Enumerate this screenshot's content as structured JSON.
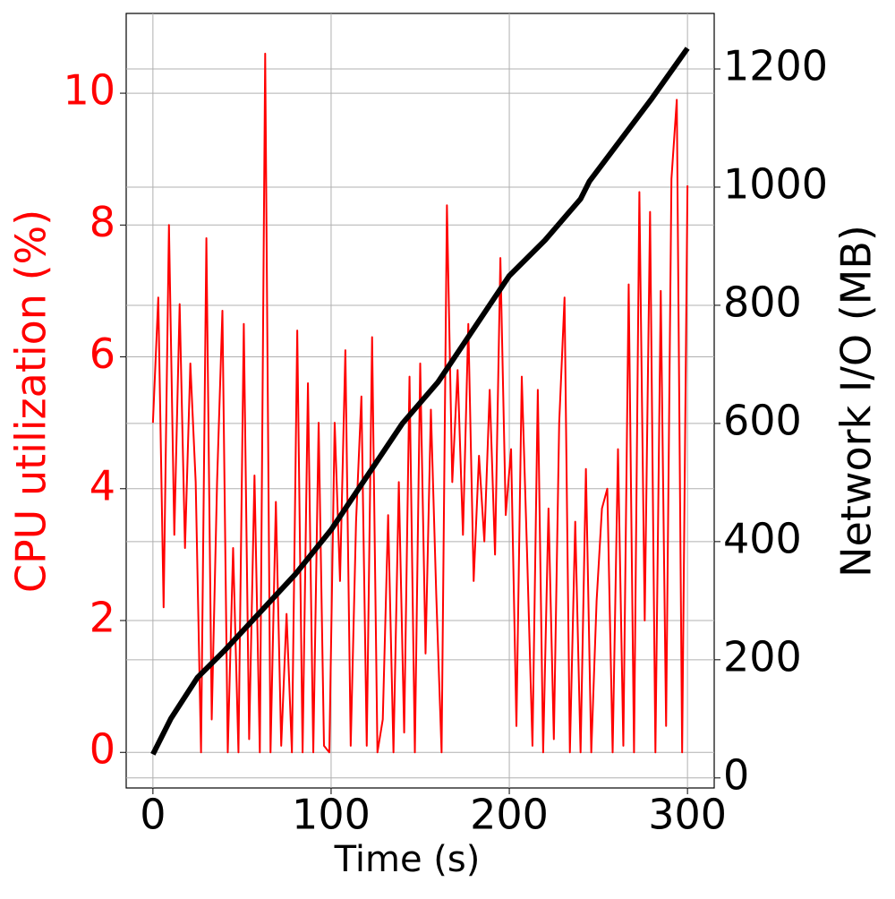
{
  "chart_data": {
    "type": "line",
    "xlabel": "Time (s)",
    "ylabel": "CPU utilization (%)",
    "y2label": "Network I/O (MB)",
    "xlim": [
      -15,
      315
    ],
    "xticks": [
      0,
      100,
      200,
      300
    ],
    "ylim": [
      -0.54,
      11.21
    ],
    "yticks": [
      0,
      2,
      4,
      6,
      8,
      10
    ],
    "y2lim": [
      -17,
      1294
    ],
    "y2ticks": [
      0,
      200,
      400,
      600,
      800,
      1000,
      1200
    ],
    "grid": true,
    "series": [
      {
        "name": "CPU utilization (%)",
        "color": "#ff0000",
        "axis": "y",
        "x": [
          0,
          3,
          6,
          9,
          12,
          15,
          18,
          21,
          24,
          27,
          30,
          33,
          36,
          39,
          42,
          45,
          48,
          51,
          54,
          57,
          60,
          63,
          66,
          69,
          72,
          75,
          78,
          81,
          84,
          87,
          90,
          93,
          96,
          99,
          102,
          105,
          108,
          111,
          114,
          117,
          120,
          123,
          126,
          129,
          132,
          135,
          138,
          141,
          144,
          147,
          150,
          153,
          156,
          159,
          162,
          165,
          168,
          171,
          174,
          177,
          180,
          183,
          186,
          189,
          192,
          195,
          198,
          201,
          204,
          207,
          210,
          213,
          216,
          219,
          222,
          225,
          228,
          231,
          234,
          237,
          240,
          243,
          246,
          249,
          252,
          255,
          258,
          261,
          264,
          267,
          270,
          273,
          276,
          279,
          282,
          285,
          288,
          291,
          294,
          297,
          300
        ],
        "values": [
          5.0,
          6.9,
          2.2,
          8.0,
          3.3,
          6.8,
          3.1,
          5.9,
          4.1,
          0,
          7.8,
          0.5,
          4.1,
          6.7,
          0,
          3.1,
          0,
          6.5,
          0.2,
          4.2,
          0,
          10.6,
          0,
          3.8,
          0.1,
          2.1,
          0,
          6.4,
          0,
          5.6,
          0,
          5.0,
          0.1,
          0,
          5.0,
          2.6,
          6.1,
          0.1,
          3.5,
          5.4,
          0.1,
          6.3,
          0,
          0.5,
          3.6,
          0,
          4.1,
          0.3,
          5.7,
          0,
          5.9,
          1.5,
          5.2,
          2.4,
          0,
          8.3,
          4.1,
          5.8,
          3.3,
          6.5,
          2.6,
          4.5,
          3.2,
          5.5,
          3.0,
          7.5,
          3.6,
          4.6,
          0.4,
          5.7,
          3.0,
          0.1,
          5.5,
          0,
          3.7,
          0.2,
          5.0,
          6.9,
          0,
          3.5,
          0,
          4.3,
          0,
          2.3,
          3.7,
          4.0,
          0,
          4.6,
          0.1,
          7.1,
          0,
          8.5,
          2.0,
          8.2,
          0,
          7.0,
          0.4,
          8.7,
          9.9,
          0,
          8.6
        ]
      },
      {
        "name": "Network I/O (MB)",
        "color": "#000000",
        "axis": "y2",
        "x": [
          0,
          10,
          25,
          40,
          60,
          80,
          100,
          120,
          140,
          160,
          180,
          200,
          220,
          240,
          245,
          260,
          280,
          300
        ],
        "values": [
          40,
          100,
          170,
          215,
          280,
          345,
          420,
          510,
          600,
          670,
          760,
          850,
          910,
          980,
          1010,
          1070,
          1150,
          1235
        ]
      }
    ]
  }
}
